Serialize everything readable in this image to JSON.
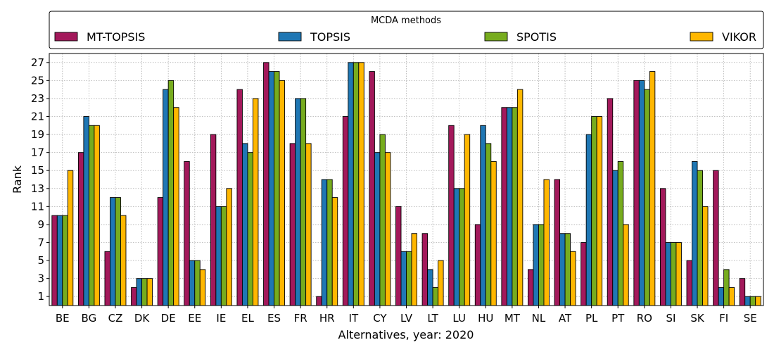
{
  "chart_data": {
    "type": "bar",
    "legend_title": "MCDA methods",
    "legend_position": "top",
    "xlabel": "Alternatives, year: 2020",
    "ylabel": "Rank",
    "ylim": [
      0,
      28
    ],
    "yticks": [
      1,
      3,
      5,
      7,
      9,
      11,
      13,
      15,
      17,
      19,
      21,
      23,
      25,
      27
    ],
    "grid": true,
    "categories": [
      "BE",
      "BG",
      "CZ",
      "DK",
      "DE",
      "EE",
      "IE",
      "EL",
      "ES",
      "FR",
      "HR",
      "IT",
      "CY",
      "LV",
      "LT",
      "LU",
      "HU",
      "MT",
      "NL",
      "AT",
      "PL",
      "PT",
      "RO",
      "SI",
      "SK",
      "FI",
      "SE"
    ],
    "series": [
      {
        "name": "MT-TOPSIS",
        "color": "#a3195b",
        "values": [
          10,
          17,
          6,
          2,
          12,
          16,
          19,
          24,
          27,
          18,
          1,
          21,
          26,
          11,
          8,
          20,
          9,
          22,
          4,
          14,
          7,
          23,
          25,
          13,
          5,
          15,
          3
        ]
      },
      {
        "name": "TOPSIS",
        "color": "#1f77b4",
        "values": [
          10,
          21,
          12,
          3,
          24,
          5,
          11,
          18,
          26,
          23,
          14,
          27,
          17,
          6,
          4,
          13,
          20,
          22,
          9,
          8,
          19,
          15,
          25,
          7,
          16,
          2,
          1
        ]
      },
      {
        "name": "SPOTIS",
        "color": "#77ac1e",
        "values": [
          10,
          20,
          12,
          3,
          25,
          5,
          11,
          17,
          26,
          23,
          14,
          27,
          19,
          6,
          2,
          13,
          18,
          22,
          9,
          8,
          21,
          16,
          24,
          7,
          15,
          4,
          1
        ]
      },
      {
        "name": "VIKOR",
        "color": "#ffb700",
        "values": [
          15,
          20,
          10,
          3,
          22,
          4,
          13,
          23,
          25,
          18,
          12,
          27,
          17,
          8,
          5,
          19,
          16,
          24,
          14,
          6,
          21,
          9,
          26,
          7,
          11,
          2,
          1
        ]
      }
    ]
  }
}
